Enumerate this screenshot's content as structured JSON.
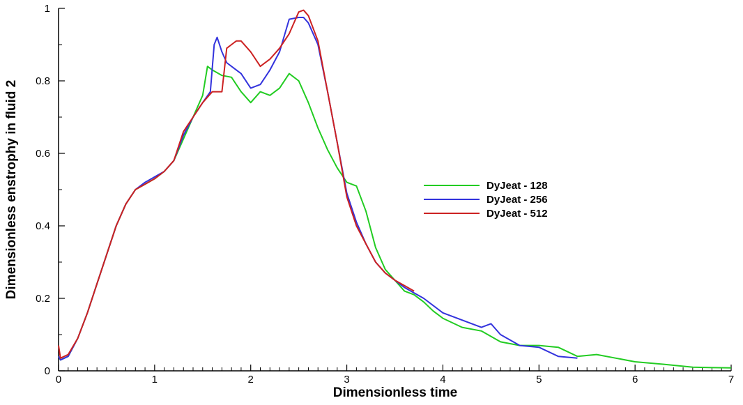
{
  "chart_data": {
    "type": "line",
    "title": "",
    "xlabel": "Dimensionless time",
    "ylabel": "Dimensionless enstrophy in fluid 2",
    "xlim": [
      0,
      7
    ],
    "ylim": [
      0,
      1
    ],
    "xticks": [
      "0",
      "1",
      "2",
      "3",
      "4",
      "5",
      "6",
      "7"
    ],
    "yticks": [
      "0",
      "0.2",
      "0.4",
      "0.6",
      "0.8",
      "1"
    ],
    "grid": false,
    "legend_position": "center-right",
    "series": [
      {
        "name": "DyJeat - 128",
        "color": "#22cc22",
        "x": [
          0,
          0.02,
          0.1,
          0.2,
          0.3,
          0.4,
          0.5,
          0.6,
          0.7,
          0.8,
          0.9,
          1.0,
          1.1,
          1.2,
          1.3,
          1.4,
          1.5,
          1.55,
          1.6,
          1.7,
          1.8,
          1.9,
          2.0,
          2.1,
          2.2,
          2.3,
          2.4,
          2.5,
          2.6,
          2.7,
          2.8,
          2.9,
          3.0,
          3.1,
          3.2,
          3.3,
          3.4,
          3.5,
          3.6,
          3.7,
          3.8,
          3.9,
          4.0,
          4.2,
          4.4,
          4.6,
          4.8,
          5.0,
          5.2,
          5.4,
          5.6,
          5.8,
          6.0,
          6.3,
          6.6,
          7.0
        ],
        "values": [
          0.04,
          0.03,
          0.04,
          0.09,
          0.16,
          0.24,
          0.32,
          0.4,
          0.46,
          0.5,
          0.515,
          0.53,
          0.55,
          0.58,
          0.64,
          0.7,
          0.76,
          0.84,
          0.83,
          0.815,
          0.81,
          0.77,
          0.74,
          0.77,
          0.76,
          0.78,
          0.82,
          0.8,
          0.74,
          0.67,
          0.61,
          0.56,
          0.52,
          0.51,
          0.44,
          0.34,
          0.28,
          0.25,
          0.22,
          0.21,
          0.19,
          0.165,
          0.145,
          0.12,
          0.11,
          0.08,
          0.07,
          0.07,
          0.065,
          0.04,
          0.045,
          0.035,
          0.025,
          0.018,
          0.01,
          0.008
        ]
      },
      {
        "name": "DyJeat - 256",
        "color": "#3333dd",
        "x": [
          0,
          0.02,
          0.1,
          0.2,
          0.3,
          0.4,
          0.5,
          0.6,
          0.7,
          0.8,
          0.9,
          1.0,
          1.1,
          1.2,
          1.3,
          1.4,
          1.5,
          1.58,
          1.62,
          1.65,
          1.7,
          1.75,
          1.8,
          1.9,
          2.0,
          2.1,
          2.2,
          2.3,
          2.4,
          2.5,
          2.55,
          2.6,
          2.7,
          2.8,
          2.9,
          3.0,
          3.1,
          3.2,
          3.3,
          3.4,
          3.5,
          3.6,
          3.7,
          3.8,
          4.0,
          4.2,
          4.4,
          4.5,
          4.6,
          4.8,
          5.0,
          5.2,
          5.4
        ],
        "values": [
          0.04,
          0.03,
          0.04,
          0.09,
          0.16,
          0.24,
          0.32,
          0.4,
          0.46,
          0.5,
          0.52,
          0.535,
          0.55,
          0.58,
          0.65,
          0.7,
          0.74,
          0.77,
          0.9,
          0.92,
          0.88,
          0.85,
          0.84,
          0.82,
          0.78,
          0.79,
          0.83,
          0.88,
          0.97,
          0.975,
          0.975,
          0.96,
          0.9,
          0.77,
          0.63,
          0.49,
          0.41,
          0.35,
          0.3,
          0.27,
          0.25,
          0.23,
          0.215,
          0.2,
          0.16,
          0.14,
          0.12,
          0.13,
          0.1,
          0.07,
          0.065,
          0.04,
          0.035
        ]
      },
      {
        "name": "DyJeat - 512",
        "color": "#cc2222",
        "x": [
          0,
          0.02,
          0.1,
          0.2,
          0.3,
          0.4,
          0.5,
          0.6,
          0.7,
          0.8,
          0.9,
          1.0,
          1.1,
          1.2,
          1.3,
          1.4,
          1.5,
          1.6,
          1.7,
          1.75,
          1.8,
          1.85,
          1.9,
          2.0,
          2.1,
          2.2,
          2.3,
          2.4,
          2.5,
          2.55,
          2.6,
          2.7,
          2.8,
          2.9,
          3.0,
          3.1,
          3.2,
          3.3,
          3.4,
          3.5,
          3.6,
          3.7
        ],
        "values": [
          0.07,
          0.035,
          0.045,
          0.09,
          0.16,
          0.24,
          0.32,
          0.4,
          0.46,
          0.5,
          0.515,
          0.53,
          0.55,
          0.58,
          0.66,
          0.7,
          0.74,
          0.77,
          0.77,
          0.89,
          0.9,
          0.91,
          0.91,
          0.88,
          0.84,
          0.86,
          0.89,
          0.93,
          0.99,
          0.995,
          0.98,
          0.91,
          0.77,
          0.63,
          0.48,
          0.4,
          0.35,
          0.3,
          0.27,
          0.25,
          0.235,
          0.22
        ]
      }
    ]
  }
}
